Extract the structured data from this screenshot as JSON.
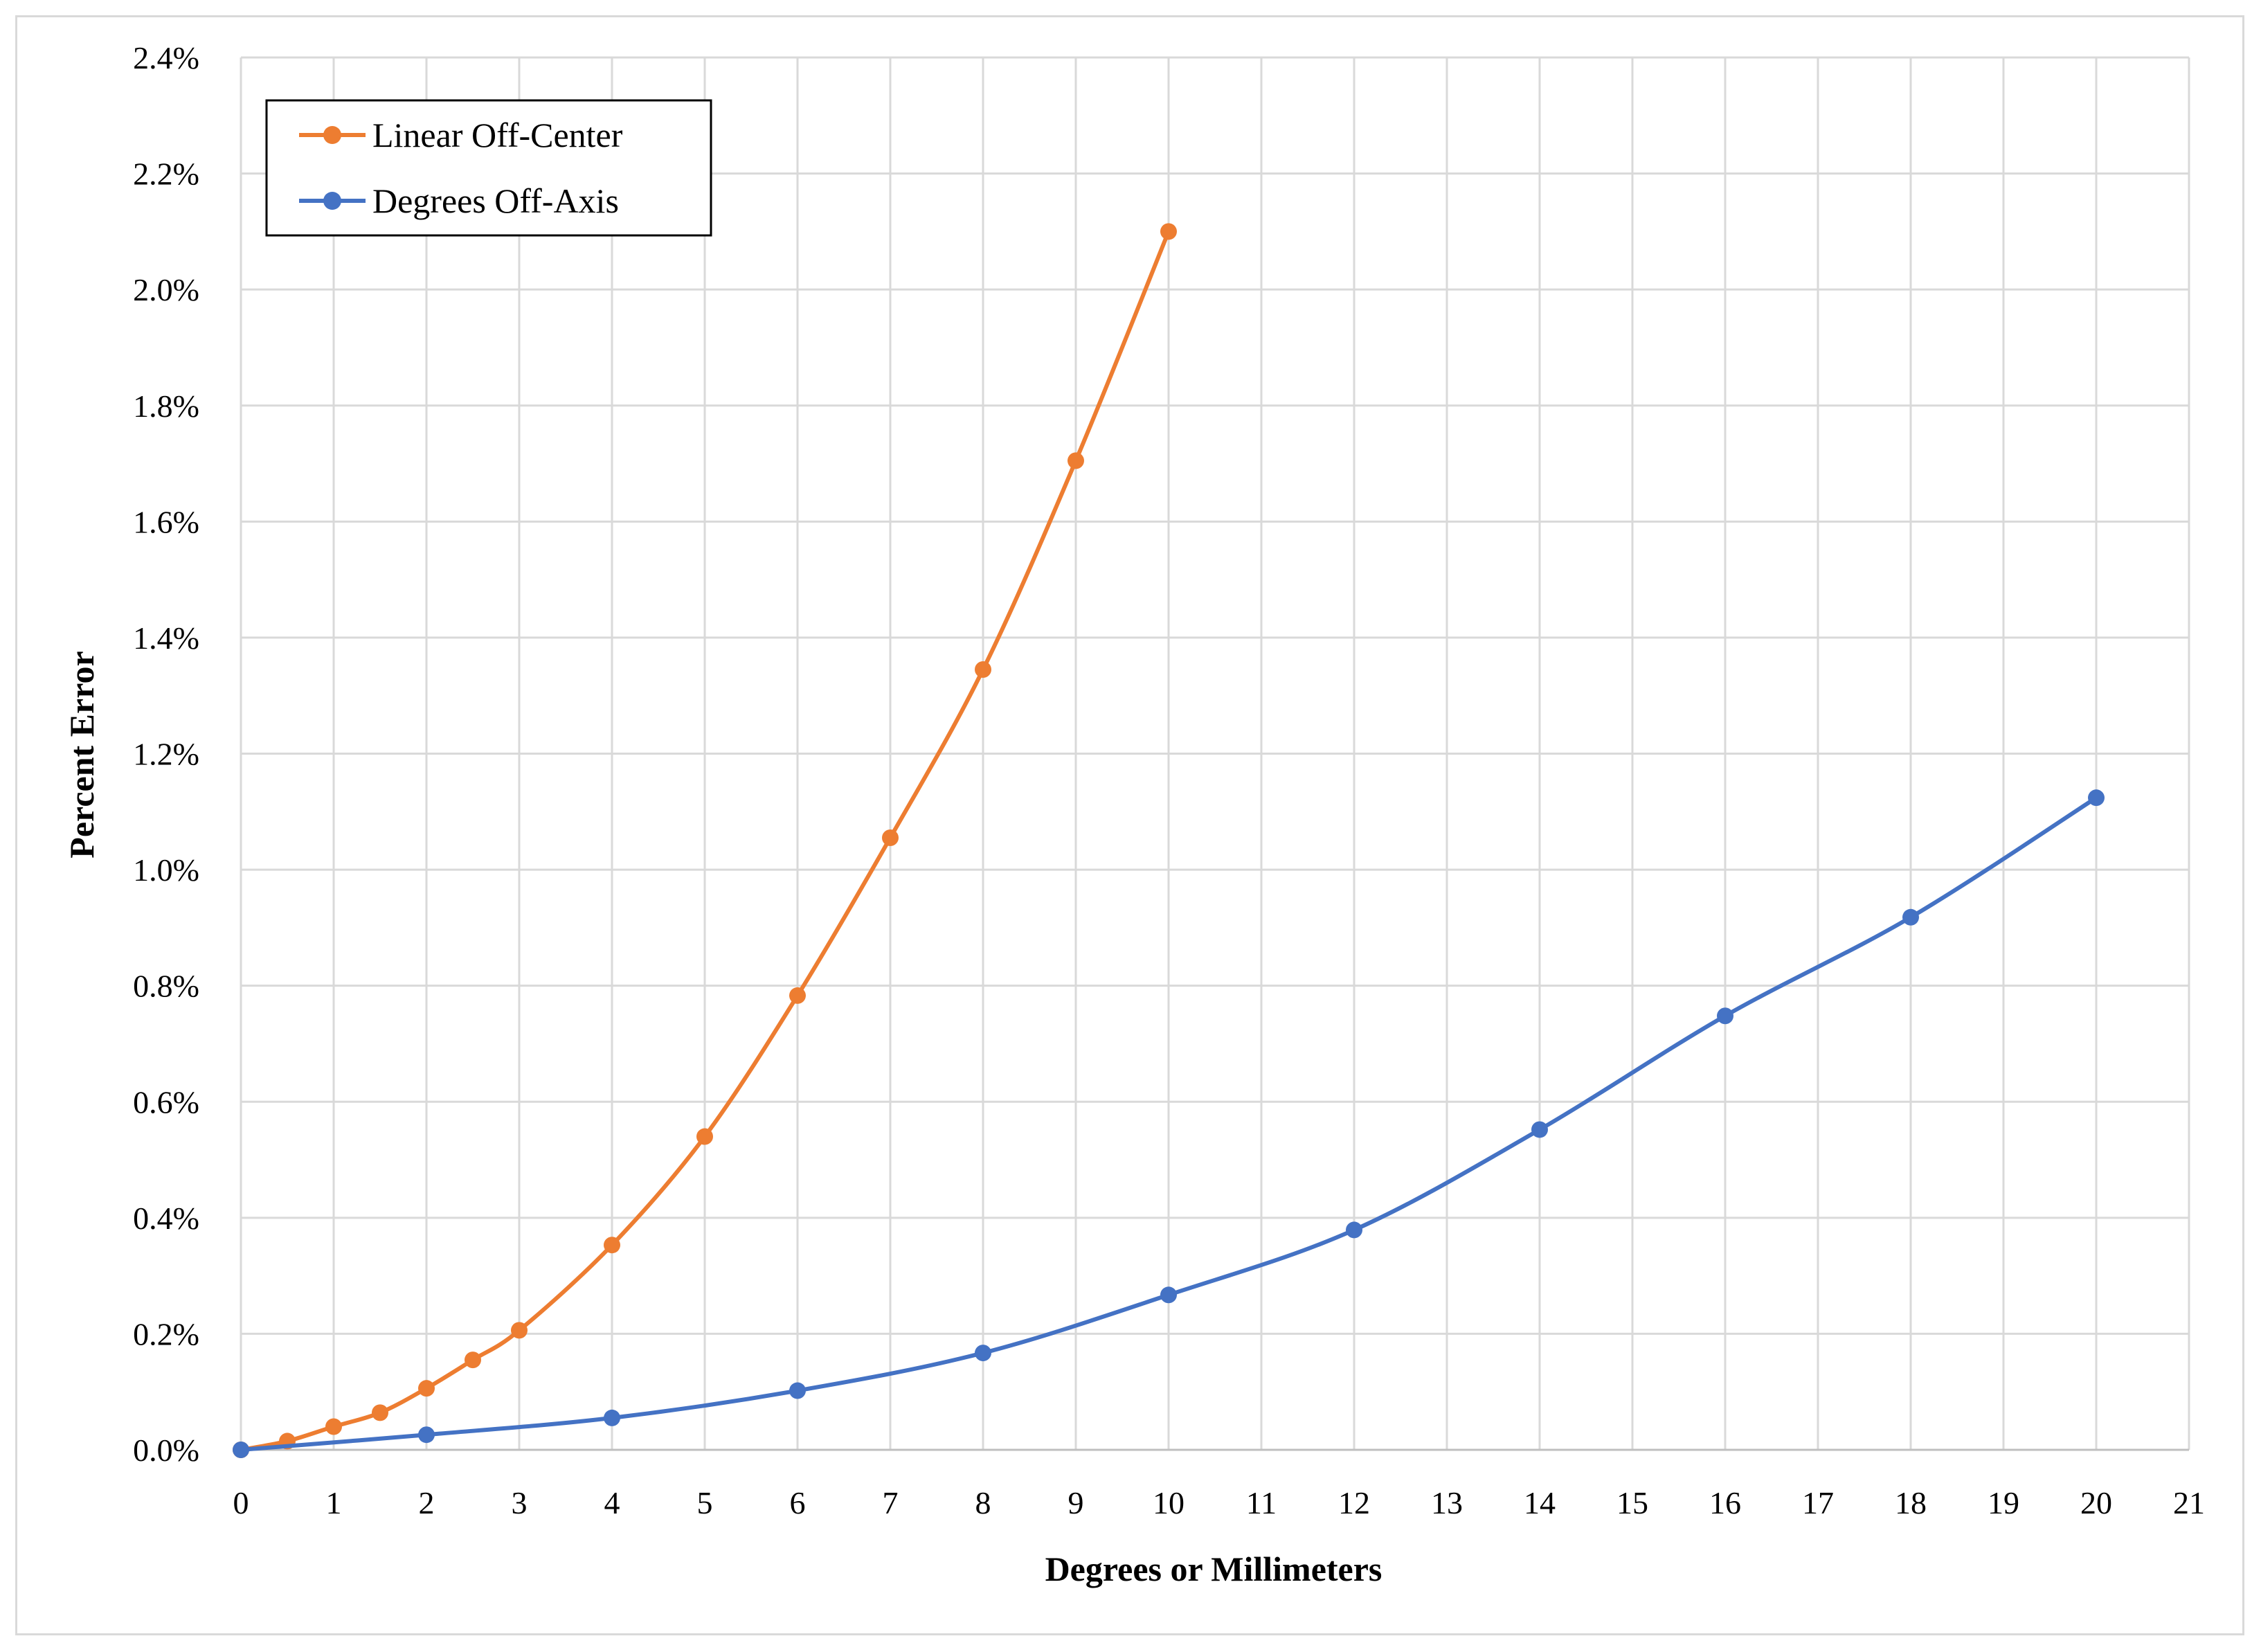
{
  "chart_data": {
    "type": "line",
    "title": "",
    "xlabel": "Degrees or Millimeters",
    "ylabel": "Percent Error",
    "xlim": [
      0,
      21
    ],
    "ylim": [
      0,
      0.024
    ],
    "x_ticks": [
      0,
      1,
      2,
      3,
      4,
      5,
      6,
      7,
      8,
      9,
      10,
      11,
      12,
      13,
      14,
      15,
      16,
      17,
      18,
      19,
      20,
      21
    ],
    "x_tick_labels": [
      "0",
      "1",
      "2",
      "3",
      "4",
      "5",
      "6",
      "7",
      "8",
      "9",
      "10",
      "11",
      "12",
      "13",
      "14",
      "15",
      "16",
      "17",
      "18",
      "19",
      "20",
      "21"
    ],
    "y_ticks": [
      0,
      0.002,
      0.004,
      0.006,
      0.008,
      0.01,
      0.012,
      0.014,
      0.016,
      0.018,
      0.02,
      0.022,
      0.024
    ],
    "y_tick_labels": [
      "0.0%",
      "0.2%",
      "0.4%",
      "0.6%",
      "0.8%",
      "1.0%",
      "1.2%",
      "1.4%",
      "1.6%",
      "1.8%",
      "2.0%",
      "2.2%",
      "2.4%"
    ],
    "grid": true,
    "legend_position": "top-left",
    "series": [
      {
        "name": "Linear Off-Center",
        "color": "#ED7D31",
        "smooth": true,
        "x": [
          0,
          0.5,
          1,
          1.5,
          2,
          2.5,
          3,
          4,
          5,
          6,
          7,
          8,
          9,
          10
        ],
        "y": [
          0,
          0.00015,
          0.0004,
          0.00064,
          0.00106,
          0.00155,
          0.00206,
          0.00353,
          0.0054,
          0.00783,
          0.01055,
          0.01345,
          0.01705,
          0.021
        ]
      },
      {
        "name": "Degrees Off-Axis",
        "color": "#4472C4",
        "smooth": true,
        "x": [
          0,
          2,
          4,
          6,
          8,
          10,
          12,
          14,
          16,
          18,
          20
        ],
        "y": [
          0,
          0.00026,
          0.00055,
          0.00102,
          0.00167,
          0.00267,
          0.00379,
          0.00552,
          0.00748,
          0.00918,
          0.01124
        ]
      }
    ]
  }
}
